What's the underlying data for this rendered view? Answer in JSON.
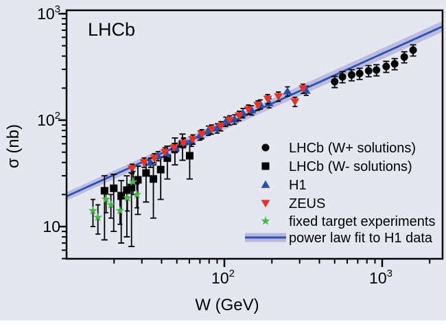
{
  "figure": {
    "title": "LHCb"
  },
  "chart_data": {
    "type": "scatter",
    "title": "LHCb",
    "xlabel": "W (GeV)",
    "ylabel": "σ (nb)",
    "x_scale": "log",
    "y_scale": "log",
    "xlim": [
      10,
      2413
    ],
    "ylim": [
      4.98,
      1077
    ],
    "grid": false,
    "x_ticks": [
      {
        "value": 100,
        "base": "10",
        "exp": "2"
      },
      {
        "value": 1000,
        "base": "10",
        "exp": "3"
      }
    ],
    "y_ticks": [
      {
        "value": 10,
        "base": "10",
        "exp": ""
      },
      {
        "value": 100,
        "base": "10",
        "exp": "2"
      },
      {
        "value": 1000,
        "base": "10",
        "exp": "3"
      }
    ],
    "x_minor_ticks": [
      20,
      30,
      40,
      50,
      60,
      70,
      80,
      90,
      200,
      300,
      400,
      500,
      600,
      700,
      800,
      900,
      2000
    ],
    "y_minor_ticks": [
      5,
      6,
      7,
      8,
      9,
      20,
      30,
      40,
      50,
      60,
      70,
      80,
      90,
      200,
      300,
      400,
      500,
      600,
      700,
      800,
      900
    ],
    "fit": {
      "label": "power law fit to H1 data",
      "model": "sigma = A * (W / W_ref)^delta",
      "A_nb": 90,
      "W_ref_GeV": 100,
      "delta": 0.67
    },
    "series": [
      {
        "name": "LHCb (W+ solutions)",
        "marker": "circle",
        "color": "#000000",
        "err_frac": 0.12,
        "points": [
          [
            500,
            230
          ],
          [
            560,
            255
          ],
          [
            640,
            266
          ],
          [
            720,
            274
          ],
          [
            820,
            291
          ],
          [
            920,
            296
          ],
          [
            1060,
            319
          ],
          [
            1200,
            338
          ],
          [
            1380,
            392
          ],
          [
            1570,
            455
          ]
        ]
      },
      {
        "name": "LHCb (W- solutions)",
        "marker": "square",
        "color": "#000000",
        "points": [
          [
            17.4,
            21.7,
            7.5,
            30
          ],
          [
            19.9,
            22.9,
            9,
            31
          ],
          [
            22.2,
            19.5,
            7,
            27
          ],
          [
            24.1,
            22,
            8,
            30
          ],
          [
            25.8,
            23.3,
            6.5,
            32
          ],
          [
            28.3,
            27.5,
            13,
            37
          ],
          [
            31.9,
            31.9,
            17,
            42
          ],
          [
            35.5,
            28,
            12,
            38
          ],
          [
            39.5,
            34.3,
            18,
            45
          ],
          [
            43.5,
            44,
            28,
            57
          ],
          [
            48.6,
            54.5,
            38,
            68
          ],
          [
            54.3,
            59.6,
            42,
            74
          ],
          [
            60.3,
            46.3,
            28,
            60
          ]
        ]
      },
      {
        "name": "H1",
        "marker": "triangle-up",
        "color": "#2b4fa3",
        "err_frac": 0.1,
        "points": [
          [
            34,
            40
          ],
          [
            38,
            46
          ],
          [
            43,
            48
          ],
          [
            49,
            55
          ],
          [
            55,
            62
          ],
          [
            62,
            63
          ],
          [
            70,
            72
          ],
          [
            79,
            80
          ],
          [
            90,
            84
          ],
          [
            102,
            97
          ],
          [
            116,
            102
          ],
          [
            131,
            117
          ],
          [
            149,
            124
          ],
          [
            169,
            141
          ],
          [
            192,
            145
          ],
          [
            251,
            187
          ],
          [
            330,
            190
          ]
        ]
      },
      {
        "name": "ZEUS",
        "marker": "triangle-down",
        "color": "#e5322a",
        "err_frac": 0.1,
        "points": [
          [
            26,
            35
          ],
          [
            31,
            40
          ],
          [
            36,
            44
          ],
          [
            42,
            50
          ],
          [
            48,
            55
          ],
          [
            55,
            61
          ],
          [
            63,
            66
          ],
          [
            72,
            74
          ],
          [
            83,
            82
          ],
          [
            95,
            88
          ],
          [
            108,
            100
          ],
          [
            124,
            110
          ],
          [
            142,
            126
          ],
          [
            163,
            138
          ],
          [
            188,
            158
          ],
          [
            220,
            167
          ],
          [
            280,
            149
          ],
          [
            315,
            198
          ]
        ]
      },
      {
        "name": "fixed target experiments",
        "marker": "star",
        "color": "#4bb54b",
        "points": [
          [
            14.7,
            14.1,
            10,
            18
          ],
          [
            15.8,
            12.2,
            8.5,
            16
          ],
          [
            17.8,
            18.1,
            13.5,
            23
          ],
          [
            19.1,
            16,
            12,
            20
          ],
          [
            21.8,
            14.1,
            10.5,
            18
          ],
          [
            24.3,
            18.6,
            14,
            23
          ],
          [
            26.4,
            26.3,
            20,
            33
          ],
          [
            27.9,
            20,
            15,
            25
          ]
        ]
      }
    ],
    "legend": {
      "position": "bottom-right",
      "entries": [
        {
          "marker": "circle",
          "color": "#000000",
          "label": "LHCb (W+ solutions)"
        },
        {
          "marker": "square",
          "color": "#000000",
          "label": "LHCb (W- solutions)"
        },
        {
          "marker": "triangle-up",
          "color": "#2b4fa3",
          "label": "H1"
        },
        {
          "marker": "triangle-down",
          "color": "#e5322a",
          "label": "ZEUS"
        },
        {
          "marker": "star",
          "color": "#4bb54b",
          "label": "fixed target experiments"
        },
        {
          "marker": "band",
          "color": "#2b50b4",
          "label": "power law fit to H1 data"
        }
      ]
    },
    "colors": {
      "background": "#e4e6f0",
      "axis": "#000000",
      "text": "#000000",
      "fit_line": "#2b50b4",
      "fit_band": "#b7b7dc"
    }
  }
}
